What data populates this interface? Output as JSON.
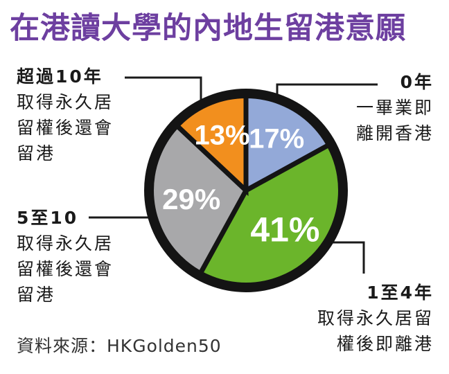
{
  "title": "在港讀大學的內地生留港意願",
  "source": "資料來源：HKGolden50",
  "chart_data": {
    "type": "pie",
    "title": "在港讀大學的內地生留港意願",
    "slices": [
      {
        "key": "s0",
        "value": 17,
        "label": "17%",
        "color": "#93a9d8",
        "annotation": {
          "head": "0年",
          "lines": [
            "一畢業即",
            "離開香港"
          ]
        }
      },
      {
        "key": "s14",
        "value": 41,
        "label": "41%",
        "color": "#6bb52b",
        "annotation": {
          "head": "1至4年",
          "lines": [
            "取得永久居留",
            "權後即離港"
          ]
        }
      },
      {
        "key": "s510",
        "value": 29,
        "label": "29%",
        "color": "#a8a8aa",
        "annotation": {
          "head": "5至10",
          "lines": [
            "取得永久居",
            "留權後還會",
            "留港"
          ]
        }
      },
      {
        "key": "s10p",
        "value": 13,
        "label": "13%",
        "color": "#f28f1e",
        "annotation": {
          "head": "超過10年",
          "lines": [
            "取得永久居",
            "留權後還會",
            "留港"
          ]
        }
      }
    ]
  }
}
